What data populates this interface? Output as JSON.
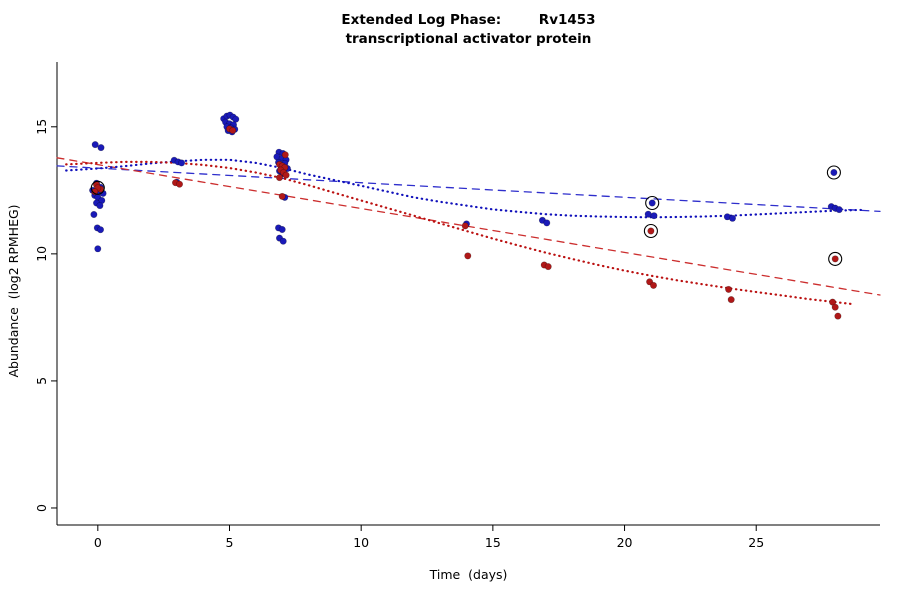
{
  "chart_data": {
    "type": "scatter",
    "title": "Extended Log Phase:        Rv1453",
    "subtitle": "transcriptional activator protein",
    "xlabel": "Time  (days)",
    "ylabel": "Abundance  (log2 RPMHEG)",
    "xlim": [
      -1.55,
      29.7
    ],
    "ylim": [
      -0.67,
      17.55
    ],
    "xticks": [
      0,
      5,
      10,
      15,
      20,
      25
    ],
    "yticks": [
      0,
      5,
      10,
      15
    ],
    "grid": false,
    "legend": "none",
    "colors": {
      "blue_points": "#1a1ab8",
      "red_points": "#b01818",
      "outlier_ring": "#000000"
    },
    "series": [
      {
        "name": "blue",
        "color": "#1a1ab8",
        "points": [
          [
            -0.1,
            14.3
          ],
          [
            0.12,
            14.18
          ],
          [
            -0.05,
            12.78
          ],
          [
            0.1,
            12.62
          ],
          [
            -0.2,
            12.5
          ],
          [
            0.05,
            12.45
          ],
          [
            0.2,
            12.38
          ],
          [
            -0.12,
            12.3
          ],
          [
            0.0,
            12.22
          ],
          [
            0.15,
            12.1
          ],
          [
            -0.05,
            12.0
          ],
          [
            0.08,
            11.9
          ],
          [
            -0.15,
            11.55
          ],
          [
            -0.02,
            11.02
          ],
          [
            0.1,
            10.95
          ],
          [
            0.0,
            10.2
          ],
          [
            2.9,
            13.68
          ],
          [
            3.05,
            13.62
          ],
          [
            3.18,
            13.58
          ],
          [
            3.0,
            12.82
          ],
          [
            4.78,
            15.32
          ],
          [
            4.9,
            15.42
          ],
          [
            5.02,
            15.46
          ],
          [
            5.14,
            15.38
          ],
          [
            5.24,
            15.3
          ],
          [
            4.85,
            15.18
          ],
          [
            5.0,
            15.12
          ],
          [
            5.15,
            15.08
          ],
          [
            4.9,
            15.0
          ],
          [
            5.05,
            14.96
          ],
          [
            5.2,
            14.9
          ],
          [
            4.95,
            14.85
          ],
          [
            5.1,
            14.8
          ],
          [
            6.88,
            14.0
          ],
          [
            7.03,
            13.95
          ],
          [
            6.8,
            13.82
          ],
          [
            7.0,
            13.76
          ],
          [
            7.15,
            13.7
          ],
          [
            6.86,
            13.6
          ],
          [
            7.1,
            13.56
          ],
          [
            6.95,
            13.46
          ],
          [
            7.2,
            13.36
          ],
          [
            6.9,
            13.26
          ],
          [
            7.02,
            13.16
          ],
          [
            7.1,
            12.22
          ],
          [
            6.86,
            11.02
          ],
          [
            7.0,
            10.96
          ],
          [
            6.9,
            10.62
          ],
          [
            7.04,
            10.5
          ],
          [
            14.0,
            11.18
          ],
          [
            16.88,
            11.32
          ],
          [
            17.05,
            11.22
          ],
          [
            20.9,
            11.56
          ],
          [
            21.12,
            11.5
          ],
          [
            23.9,
            11.46
          ],
          [
            24.1,
            11.4
          ],
          [
            27.85,
            11.86
          ],
          [
            28.0,
            11.8
          ],
          [
            28.15,
            11.74
          ],
          [
            21.05,
            12.0
          ],
          [
            27.95,
            13.2
          ]
        ]
      },
      {
        "name": "red",
        "color": "#b01818",
        "points": [
          [
            -0.05,
            12.72
          ],
          [
            0.1,
            12.55
          ],
          [
            0.0,
            12.6
          ],
          [
            -0.12,
            12.45
          ],
          [
            2.95,
            12.8
          ],
          [
            3.1,
            12.74
          ],
          [
            5.0,
            14.92
          ],
          [
            5.12,
            14.86
          ],
          [
            7.12,
            13.9
          ],
          [
            6.9,
            13.52
          ],
          [
            7.0,
            13.46
          ],
          [
            7.1,
            13.4
          ],
          [
            6.94,
            13.3
          ],
          [
            7.05,
            13.2
          ],
          [
            7.15,
            13.1
          ],
          [
            6.9,
            13.0
          ],
          [
            7.0,
            12.26
          ],
          [
            13.95,
            11.1
          ],
          [
            14.05,
            9.92
          ],
          [
            16.95,
            9.56
          ],
          [
            17.1,
            9.5
          ],
          [
            20.95,
            8.9
          ],
          [
            21.1,
            8.76
          ],
          [
            21.0,
            10.9
          ],
          [
            23.95,
            8.6
          ],
          [
            24.05,
            8.2
          ],
          [
            27.9,
            8.1
          ],
          [
            28.0,
            7.9
          ],
          [
            28.1,
            7.55
          ],
          [
            28.0,
            9.8
          ]
        ]
      }
    ],
    "outliers": [
      [
        0.0,
        12.6
      ],
      [
        21.05,
        12.0
      ],
      [
        21.0,
        10.9
      ],
      [
        27.95,
        13.2
      ],
      [
        28.0,
        9.8
      ]
    ],
    "lines": [
      {
        "name": "blue-linear-trend-dashed",
        "color": "#2e2ecc",
        "width": 1.3,
        "dash": "7 6",
        "points": [
          [
            -1.55,
            13.46
          ],
          [
            29.7,
            11.67
          ]
        ]
      },
      {
        "name": "red-linear-trend-dashed",
        "color": "#cc2e2e",
        "width": 1.3,
        "dash": "7 6",
        "points": [
          [
            -1.55,
            13.78
          ],
          [
            29.7,
            8.38
          ]
        ]
      },
      {
        "name": "blue-loess-trend-dotted",
        "color": "#1111bb",
        "width": 2.2,
        "dash": "0.4 4.6",
        "points": [
          [
            -1.2,
            13.28
          ],
          [
            0,
            13.36
          ],
          [
            1,
            13.45
          ],
          [
            2,
            13.56
          ],
          [
            3,
            13.64
          ],
          [
            4,
            13.7
          ],
          [
            5,
            13.7
          ],
          [
            6,
            13.58
          ],
          [
            7,
            13.38
          ],
          [
            8,
            13.12
          ],
          [
            9,
            12.9
          ],
          [
            10,
            12.68
          ],
          [
            11,
            12.45
          ],
          [
            12,
            12.22
          ],
          [
            13,
            12.05
          ],
          [
            14,
            11.9
          ],
          [
            15,
            11.75
          ],
          [
            16,
            11.65
          ],
          [
            17,
            11.56
          ],
          [
            18,
            11.5
          ],
          [
            19,
            11.47
          ],
          [
            20,
            11.45
          ],
          [
            21,
            11.44
          ],
          [
            22,
            11.45
          ],
          [
            23,
            11.47
          ],
          [
            24,
            11.5
          ],
          [
            25,
            11.55
          ],
          [
            26,
            11.6
          ],
          [
            27,
            11.65
          ],
          [
            28,
            11.7
          ],
          [
            29,
            11.73
          ]
        ]
      },
      {
        "name": "red-loess-trend-dotted",
        "color": "#bb1111",
        "width": 2.2,
        "dash": "0.4 4.6",
        "points": [
          [
            -1.2,
            13.52
          ],
          [
            0,
            13.58
          ],
          [
            1,
            13.62
          ],
          [
            2,
            13.62
          ],
          [
            3,
            13.58
          ],
          [
            4,
            13.5
          ],
          [
            5,
            13.38
          ],
          [
            6,
            13.2
          ],
          [
            7,
            12.98
          ],
          [
            8,
            12.7
          ],
          [
            9,
            12.4
          ],
          [
            10,
            12.1
          ],
          [
            11,
            11.8
          ],
          [
            12,
            11.5
          ],
          [
            13,
            11.2
          ],
          [
            14,
            10.9
          ],
          [
            15,
            10.6
          ],
          [
            16,
            10.32
          ],
          [
            17,
            10.05
          ],
          [
            18,
            9.8
          ],
          [
            19,
            9.56
          ],
          [
            20,
            9.34
          ],
          [
            21,
            9.14
          ],
          [
            22,
            8.96
          ],
          [
            23,
            8.8
          ],
          [
            24,
            8.64
          ],
          [
            25,
            8.5
          ],
          [
            26,
            8.36
          ],
          [
            27,
            8.22
          ],
          [
            28,
            8.1
          ],
          [
            28.6,
            8.03
          ]
        ]
      }
    ]
  }
}
